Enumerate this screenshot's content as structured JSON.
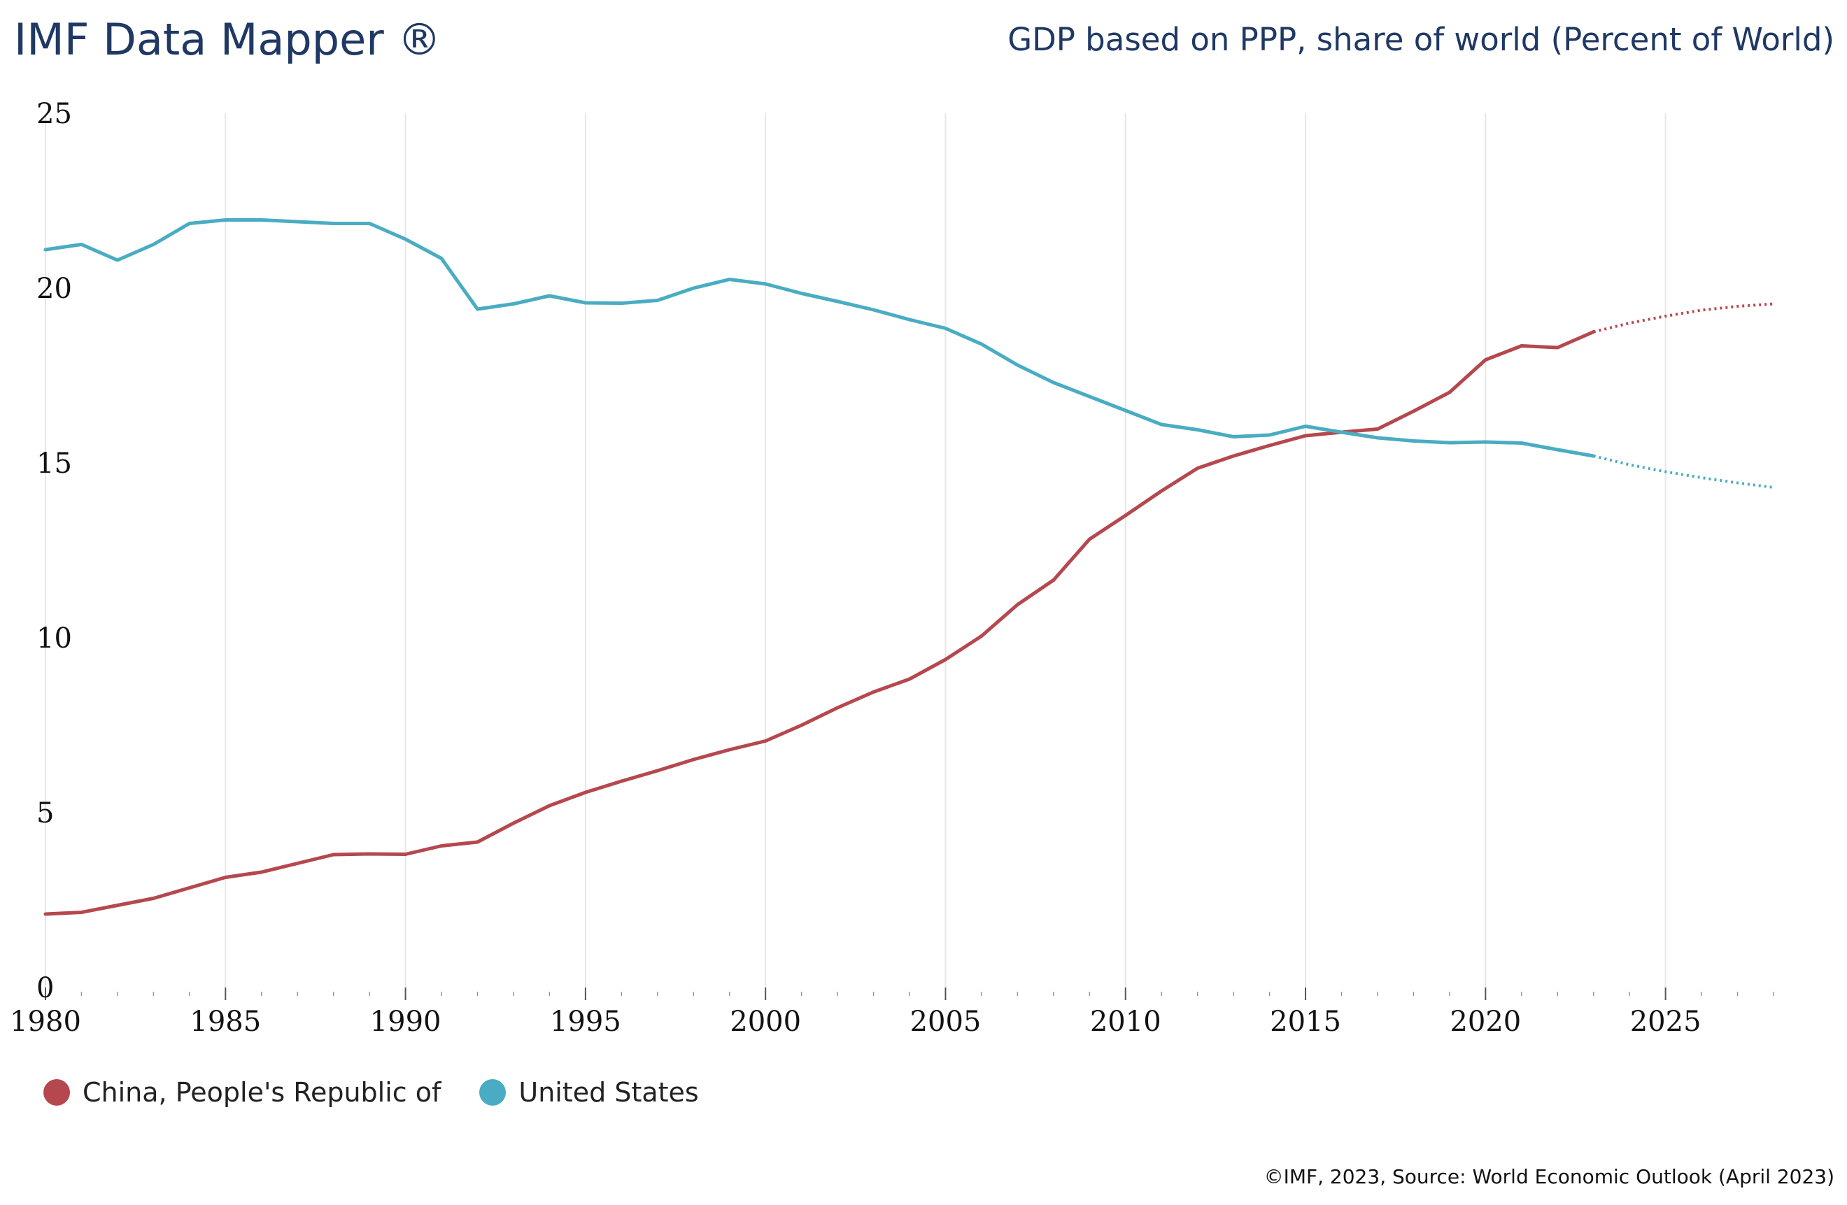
{
  "header": {
    "brand": "IMF Data Mapper ®",
    "indicator": "GDP based on PPP, share of world (Percent of World)"
  },
  "footer": {
    "credits": "©IMF, 2023, Source: World Economic Outlook (April 2023)"
  },
  "chart_data": {
    "type": "line",
    "title": "GDP based on PPP, share of world (Percent of World)",
    "xlabel": "",
    "ylabel": "",
    "xlim": [
      1980,
      2028
    ],
    "ylim": [
      0,
      25
    ],
    "x_ticks": [
      1980,
      1985,
      1990,
      1995,
      2000,
      2005,
      2010,
      2015,
      2020,
      2025
    ],
    "y_ticks": [
      0,
      5,
      10,
      15,
      20,
      25
    ],
    "grid": "vertical",
    "legend_position": "bottom-left",
    "projection_start": 2023,
    "x": [
      1980,
      1981,
      1982,
      1983,
      1984,
      1985,
      1986,
      1987,
      1988,
      1989,
      1990,
      1991,
      1992,
      1993,
      1994,
      1995,
      1996,
      1997,
      1998,
      1999,
      2000,
      2001,
      2002,
      2003,
      2004,
      2005,
      2006,
      2007,
      2008,
      2009,
      2010,
      2011,
      2012,
      2013,
      2014,
      2015,
      2016,
      2017,
      2018,
      2019,
      2020,
      2021,
      2022,
      2023,
      2024,
      2025,
      2026,
      2027,
      2028
    ],
    "series": [
      {
        "name": "China, People's Republic of",
        "color": "#b5484e",
        "values": [
          2.1,
          2.15,
          2.35,
          2.55,
          2.85,
          3.15,
          3.3,
          3.55,
          3.8,
          3.82,
          3.81,
          4.05,
          4.16,
          4.7,
          5.2,
          5.58,
          5.9,
          6.2,
          6.52,
          6.8,
          7.05,
          7.5,
          8.0,
          8.45,
          8.82,
          9.38,
          10.05,
          10.95,
          11.65,
          12.82,
          13.5,
          14.2,
          14.85,
          15.2,
          15.5,
          15.78,
          15.88,
          15.97,
          16.48,
          17.02,
          17.95,
          18.35,
          18.3,
          18.75,
          19.0,
          19.2,
          19.37,
          19.48,
          19.55
        ]
      },
      {
        "name": "United States",
        "color": "#4aacc3",
        "values": [
          21.1,
          21.25,
          20.8,
          21.25,
          21.85,
          21.95,
          21.95,
          21.9,
          21.85,
          21.85,
          21.4,
          20.85,
          19.4,
          19.55,
          19.78,
          19.58,
          19.57,
          19.65,
          20.0,
          20.25,
          20.12,
          19.85,
          19.62,
          19.38,
          19.1,
          18.85,
          18.4,
          17.8,
          17.3,
          16.9,
          16.5,
          16.1,
          15.95,
          15.75,
          15.8,
          16.05,
          15.88,
          15.72,
          15.63,
          15.58,
          15.6,
          15.57,
          15.38,
          15.2,
          14.95,
          14.75,
          14.58,
          14.43,
          14.3
        ]
      }
    ]
  }
}
